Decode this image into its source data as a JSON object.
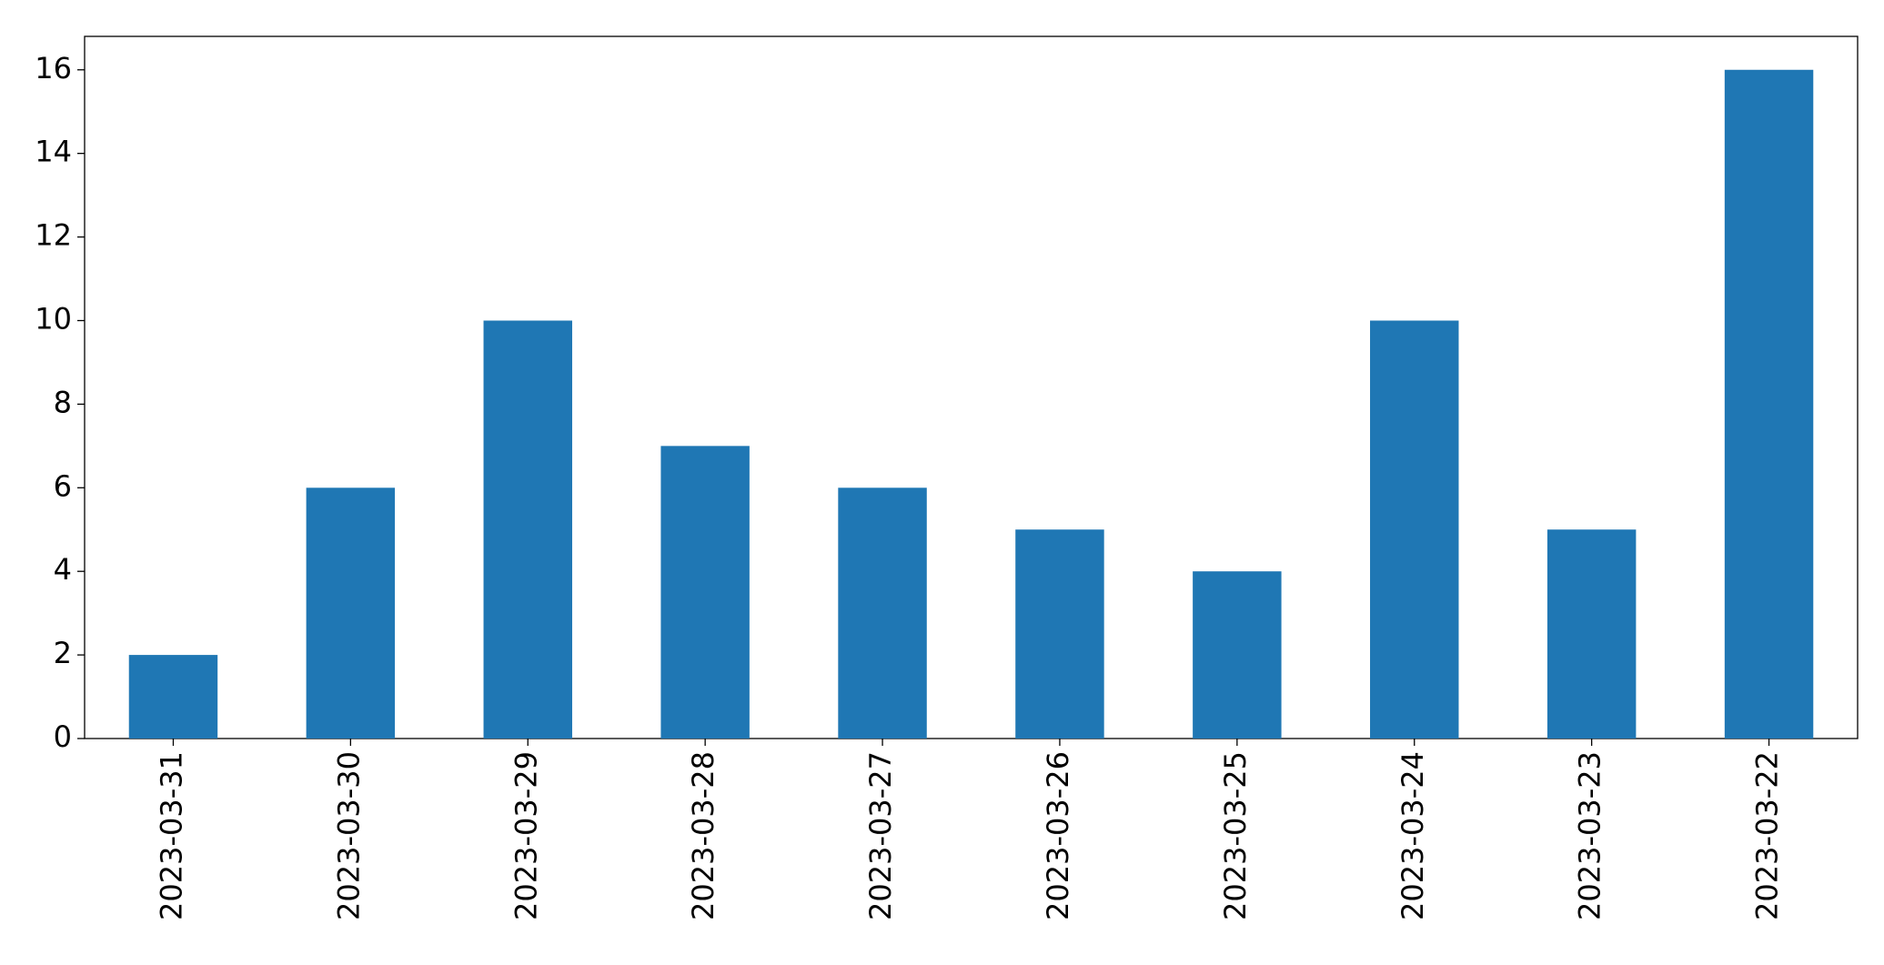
{
  "chart_data": {
    "type": "bar",
    "categories": [
      "2023-03-31",
      "2023-03-30",
      "2023-03-29",
      "2023-03-28",
      "2023-03-27",
      "2023-03-26",
      "2023-03-25",
      "2023-03-24",
      "2023-03-23",
      "2023-03-22"
    ],
    "values": [
      2,
      6,
      10,
      7,
      6,
      5,
      4,
      10,
      5,
      16
    ],
    "color": "#1f77b4",
    "ylim": [
      0,
      16.8
    ],
    "yticks": [
      0,
      2,
      4,
      6,
      8,
      10,
      12,
      14,
      16
    ],
    "grid": false
  }
}
